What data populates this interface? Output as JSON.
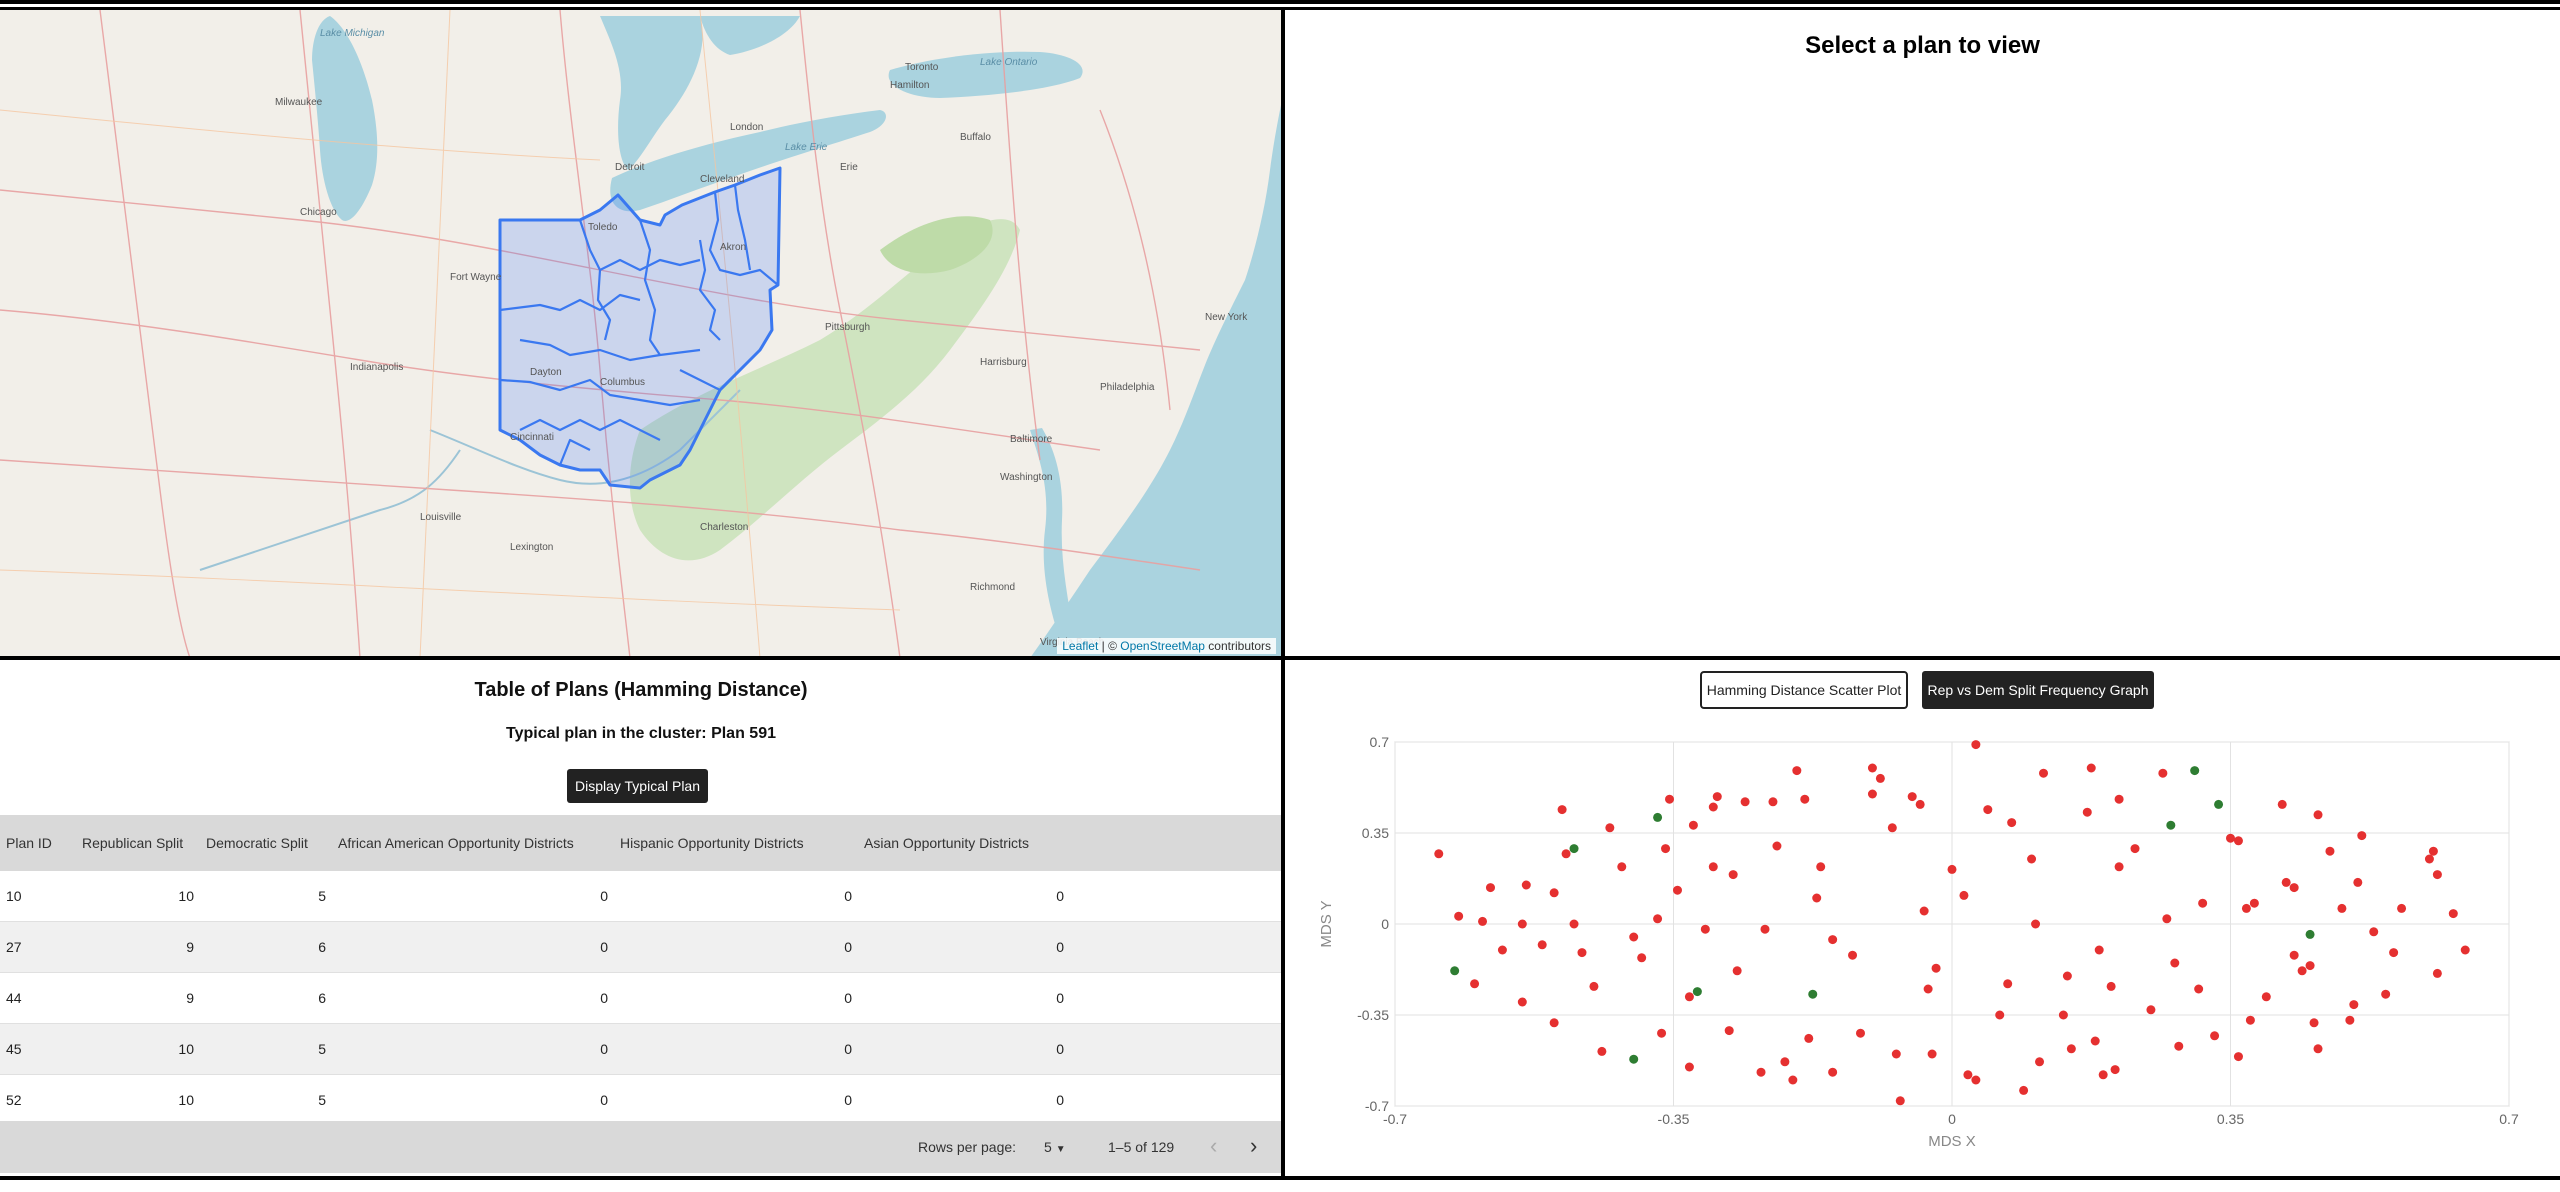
{
  "map": {
    "attribution": {
      "leaflet": "Leaflet",
      "sep": " | © ",
      "osm": "OpenStreetMap",
      "rest": " contributors"
    },
    "labels": [
      "Lake Michigan",
      "Milwaukee",
      "Chicago",
      "Detroit",
      "Toledo",
      "Cleveland",
      "Columbus",
      "Cincinnati",
      "Indianapolis",
      "Pittsburgh",
      "Buffalo",
      "Toronto",
      "Hamilton",
      "London",
      "Lake Erie",
      "Washington",
      "Baltimore",
      "Philadelphia",
      "Richmond",
      "Louisville",
      "Lexington",
      "Fort Wayne",
      "Dayton",
      "Akron",
      "Erie",
      "Harrisburg",
      "Charleston",
      "New York",
      "Lake Ontario",
      "Virginia Beach"
    ]
  },
  "view": {
    "title": "Select a plan to view"
  },
  "table": {
    "title": "Table of Plans (Hamming Distance)",
    "typical_text": "Typical plan in the cluster: Plan 591",
    "display_button": "Display Typical Plan",
    "headers": [
      "Plan ID",
      "Republican Split",
      "Democratic Split",
      "African American Opportunity Districts",
      "Hispanic Opportunity Districts",
      "Asian Opportunity Districts"
    ],
    "rows": [
      [
        "10",
        "10",
        "5",
        "0",
        "0",
        "0"
      ],
      [
        "27",
        "9",
        "6",
        "0",
        "0",
        "0"
      ],
      [
        "44",
        "9",
        "6",
        "0",
        "0",
        "0"
      ],
      [
        "45",
        "10",
        "5",
        "0",
        "0",
        "0"
      ],
      [
        "52",
        "10",
        "5",
        "0",
        "0",
        "0"
      ]
    ],
    "rows_per_page_label": "Rows per page:",
    "rows_per_page_value": "5",
    "range_text": "1–5 of 129",
    "prev_icon": "‹",
    "next_icon": "›"
  },
  "scatter": {
    "buttons": [
      "Hamming Distance Scatter Plot",
      "Rep vs Dem Split Frequency Graph"
    ]
  },
  "chart_data": {
    "type": "scatter",
    "title": "",
    "xlabel": "MDS X",
    "ylabel": "MDS Y",
    "xlim": [
      -0.7,
      0.7
    ],
    "ylim": [
      -0.7,
      0.7
    ],
    "xticks": [
      "-0.7",
      "-0.35",
      "0",
      "0.35",
      "0.7"
    ],
    "yticks": [
      "0.7",
      "0.35",
      "0",
      "-0.35",
      "-0.7"
    ],
    "grid": true,
    "colors": {
      "red": "#e53030",
      "green": "#2e7d32"
    },
    "series": [
      {
        "color": "red",
        "points": [
          [
            -0.645,
            0.27
          ],
          [
            -0.62,
            0.03
          ],
          [
            -0.6,
            -0.23
          ],
          [
            -0.59,
            0.01
          ],
          [
            -0.58,
            0.14
          ],
          [
            -0.565,
            -0.1
          ],
          [
            -0.54,
            0.0
          ],
          [
            -0.54,
            -0.3
          ],
          [
            -0.535,
            0.15
          ],
          [
            -0.515,
            -0.08
          ],
          [
            -0.5,
            0.12
          ],
          [
            -0.5,
            -0.38
          ],
          [
            -0.49,
            0.44
          ],
          [
            -0.485,
            0.27
          ],
          [
            -0.475,
            0.0
          ],
          [
            -0.465,
            -0.11
          ],
          [
            -0.45,
            -0.24
          ],
          [
            -0.44,
            -0.49
          ],
          [
            -0.43,
            0.37
          ],
          [
            -0.415,
            0.22
          ],
          [
            -0.4,
            -0.05
          ],
          [
            -0.39,
            -0.13
          ],
          [
            -0.365,
            -0.42
          ],
          [
            -0.37,
            0.02
          ],
          [
            -0.36,
            0.29
          ],
          [
            -0.355,
            0.48
          ],
          [
            -0.345,
            0.13
          ],
          [
            -0.33,
            -0.28
          ],
          [
            -0.33,
            -0.55
          ],
          [
            -0.325,
            0.38
          ],
          [
            -0.31,
            -0.02
          ],
          [
            -0.3,
            0.22
          ],
          [
            -0.3,
            0.45
          ],
          [
            -0.295,
            0.49
          ],
          [
            -0.28,
            -0.41
          ],
          [
            -0.275,
            0.19
          ],
          [
            -0.27,
            -0.18
          ],
          [
            -0.26,
            0.47
          ],
          [
            -0.24,
            -0.57
          ],
          [
            -0.235,
            -0.02
          ],
          [
            -0.225,
            0.47
          ],
          [
            -0.22,
            0.3
          ],
          [
            -0.21,
            -0.53
          ],
          [
            -0.2,
            -0.6
          ],
          [
            -0.195,
            0.59
          ],
          [
            -0.185,
            0.48
          ],
          [
            -0.18,
            -0.44
          ],
          [
            -0.17,
            0.1
          ],
          [
            -0.165,
            0.22
          ],
          [
            -0.15,
            -0.06
          ],
          [
            -0.15,
            -0.57
          ],
          [
            -0.125,
            -0.12
          ],
          [
            -0.115,
            -0.42
          ],
          [
            -0.1,
            0.5
          ],
          [
            -0.1,
            0.6
          ],
          [
            -0.09,
            0.56
          ],
          [
            -0.075,
            0.37
          ],
          [
            -0.07,
            -0.5
          ],
          [
            -0.065,
            -0.68
          ],
          [
            -0.05,
            0.49
          ],
          [
            -0.04,
            0.46
          ],
          [
            -0.035,
            0.05
          ],
          [
            -0.03,
            -0.25
          ],
          [
            -0.025,
            -0.5
          ],
          [
            -0.02,
            -0.17
          ],
          [
            0.0,
            0.21
          ],
          [
            0.015,
            0.11
          ],
          [
            0.03,
            -0.6
          ],
          [
            0.03,
            0.69
          ],
          [
            0.045,
            0.44
          ],
          [
            0.06,
            -0.35
          ],
          [
            0.07,
            -0.23
          ],
          [
            0.075,
            0.39
          ],
          [
            0.09,
            -0.64
          ],
          [
            0.1,
            0.25
          ],
          [
            0.105,
            0.0
          ],
          [
            0.11,
            -0.53
          ],
          [
            0.115,
            0.58
          ],
          [
            0.14,
            -0.35
          ],
          [
            0.145,
            -0.2
          ],
          [
            0.15,
            -0.48
          ],
          [
            0.17,
            0.43
          ],
          [
            0.175,
            0.6
          ],
          [
            0.18,
            -0.45
          ],
          [
            0.185,
            -0.1
          ],
          [
            0.19,
            -0.58
          ],
          [
            0.2,
            -0.24
          ],
          [
            0.205,
            -0.56
          ],
          [
            0.21,
            0.48
          ],
          [
            0.21,
            0.22
          ],
          [
            0.23,
            0.29
          ],
          [
            0.25,
            -0.33
          ],
          [
            0.265,
            0.58
          ],
          [
            0.27,
            0.02
          ],
          [
            0.28,
            -0.15
          ],
          [
            0.285,
            -0.47
          ],
          [
            0.31,
            -0.25
          ],
          [
            0.315,
            0.08
          ],
          [
            0.33,
            -0.43
          ],
          [
            0.35,
            0.33
          ],
          [
            0.36,
            0.32
          ],
          [
            0.36,
            -0.51
          ],
          [
            0.375,
            -0.37
          ],
          [
            0.38,
            0.08
          ],
          [
            0.395,
            -0.28
          ],
          [
            0.42,
            0.16
          ],
          [
            0.43,
            0.14
          ],
          [
            0.43,
            -0.12
          ],
          [
            0.455,
            -0.38
          ],
          [
            0.46,
            0.42
          ],
          [
            0.46,
            -0.48
          ],
          [
            0.475,
            0.28
          ],
          [
            0.49,
            0.06
          ],
          [
            0.5,
            -0.37
          ],
          [
            0.505,
            -0.31
          ],
          [
            0.51,
            0.16
          ],
          [
            0.515,
            0.34
          ],
          [
            0.53,
            -0.03
          ],
          [
            0.545,
            -0.27
          ],
          [
            0.555,
            -0.11
          ],
          [
            0.565,
            0.06
          ],
          [
            0.6,
            0.25
          ],
          [
            0.605,
            0.28
          ],
          [
            0.61,
            0.19
          ],
          [
            0.61,
            -0.19
          ],
          [
            0.63,
            0.04
          ],
          [
            0.645,
            -0.1
          ],
          [
            0.415,
            0.46
          ],
          [
            0.44,
            -0.18
          ],
          [
            0.45,
            -0.16
          ],
          [
            0.37,
            0.06
          ],
          [
            0.02,
            -0.58
          ]
        ]
      },
      {
        "color": "green",
        "points": [
          [
            -0.625,
            -0.18
          ],
          [
            -0.475,
            0.29
          ],
          [
            -0.4,
            -0.52
          ],
          [
            -0.37,
            0.41
          ],
          [
            -0.32,
            -0.26
          ],
          [
            -0.175,
            -0.27
          ],
          [
            0.275,
            0.38
          ],
          [
            0.305,
            0.59
          ],
          [
            0.335,
            0.46
          ],
          [
            0.45,
            -0.04
          ]
        ]
      }
    ]
  }
}
